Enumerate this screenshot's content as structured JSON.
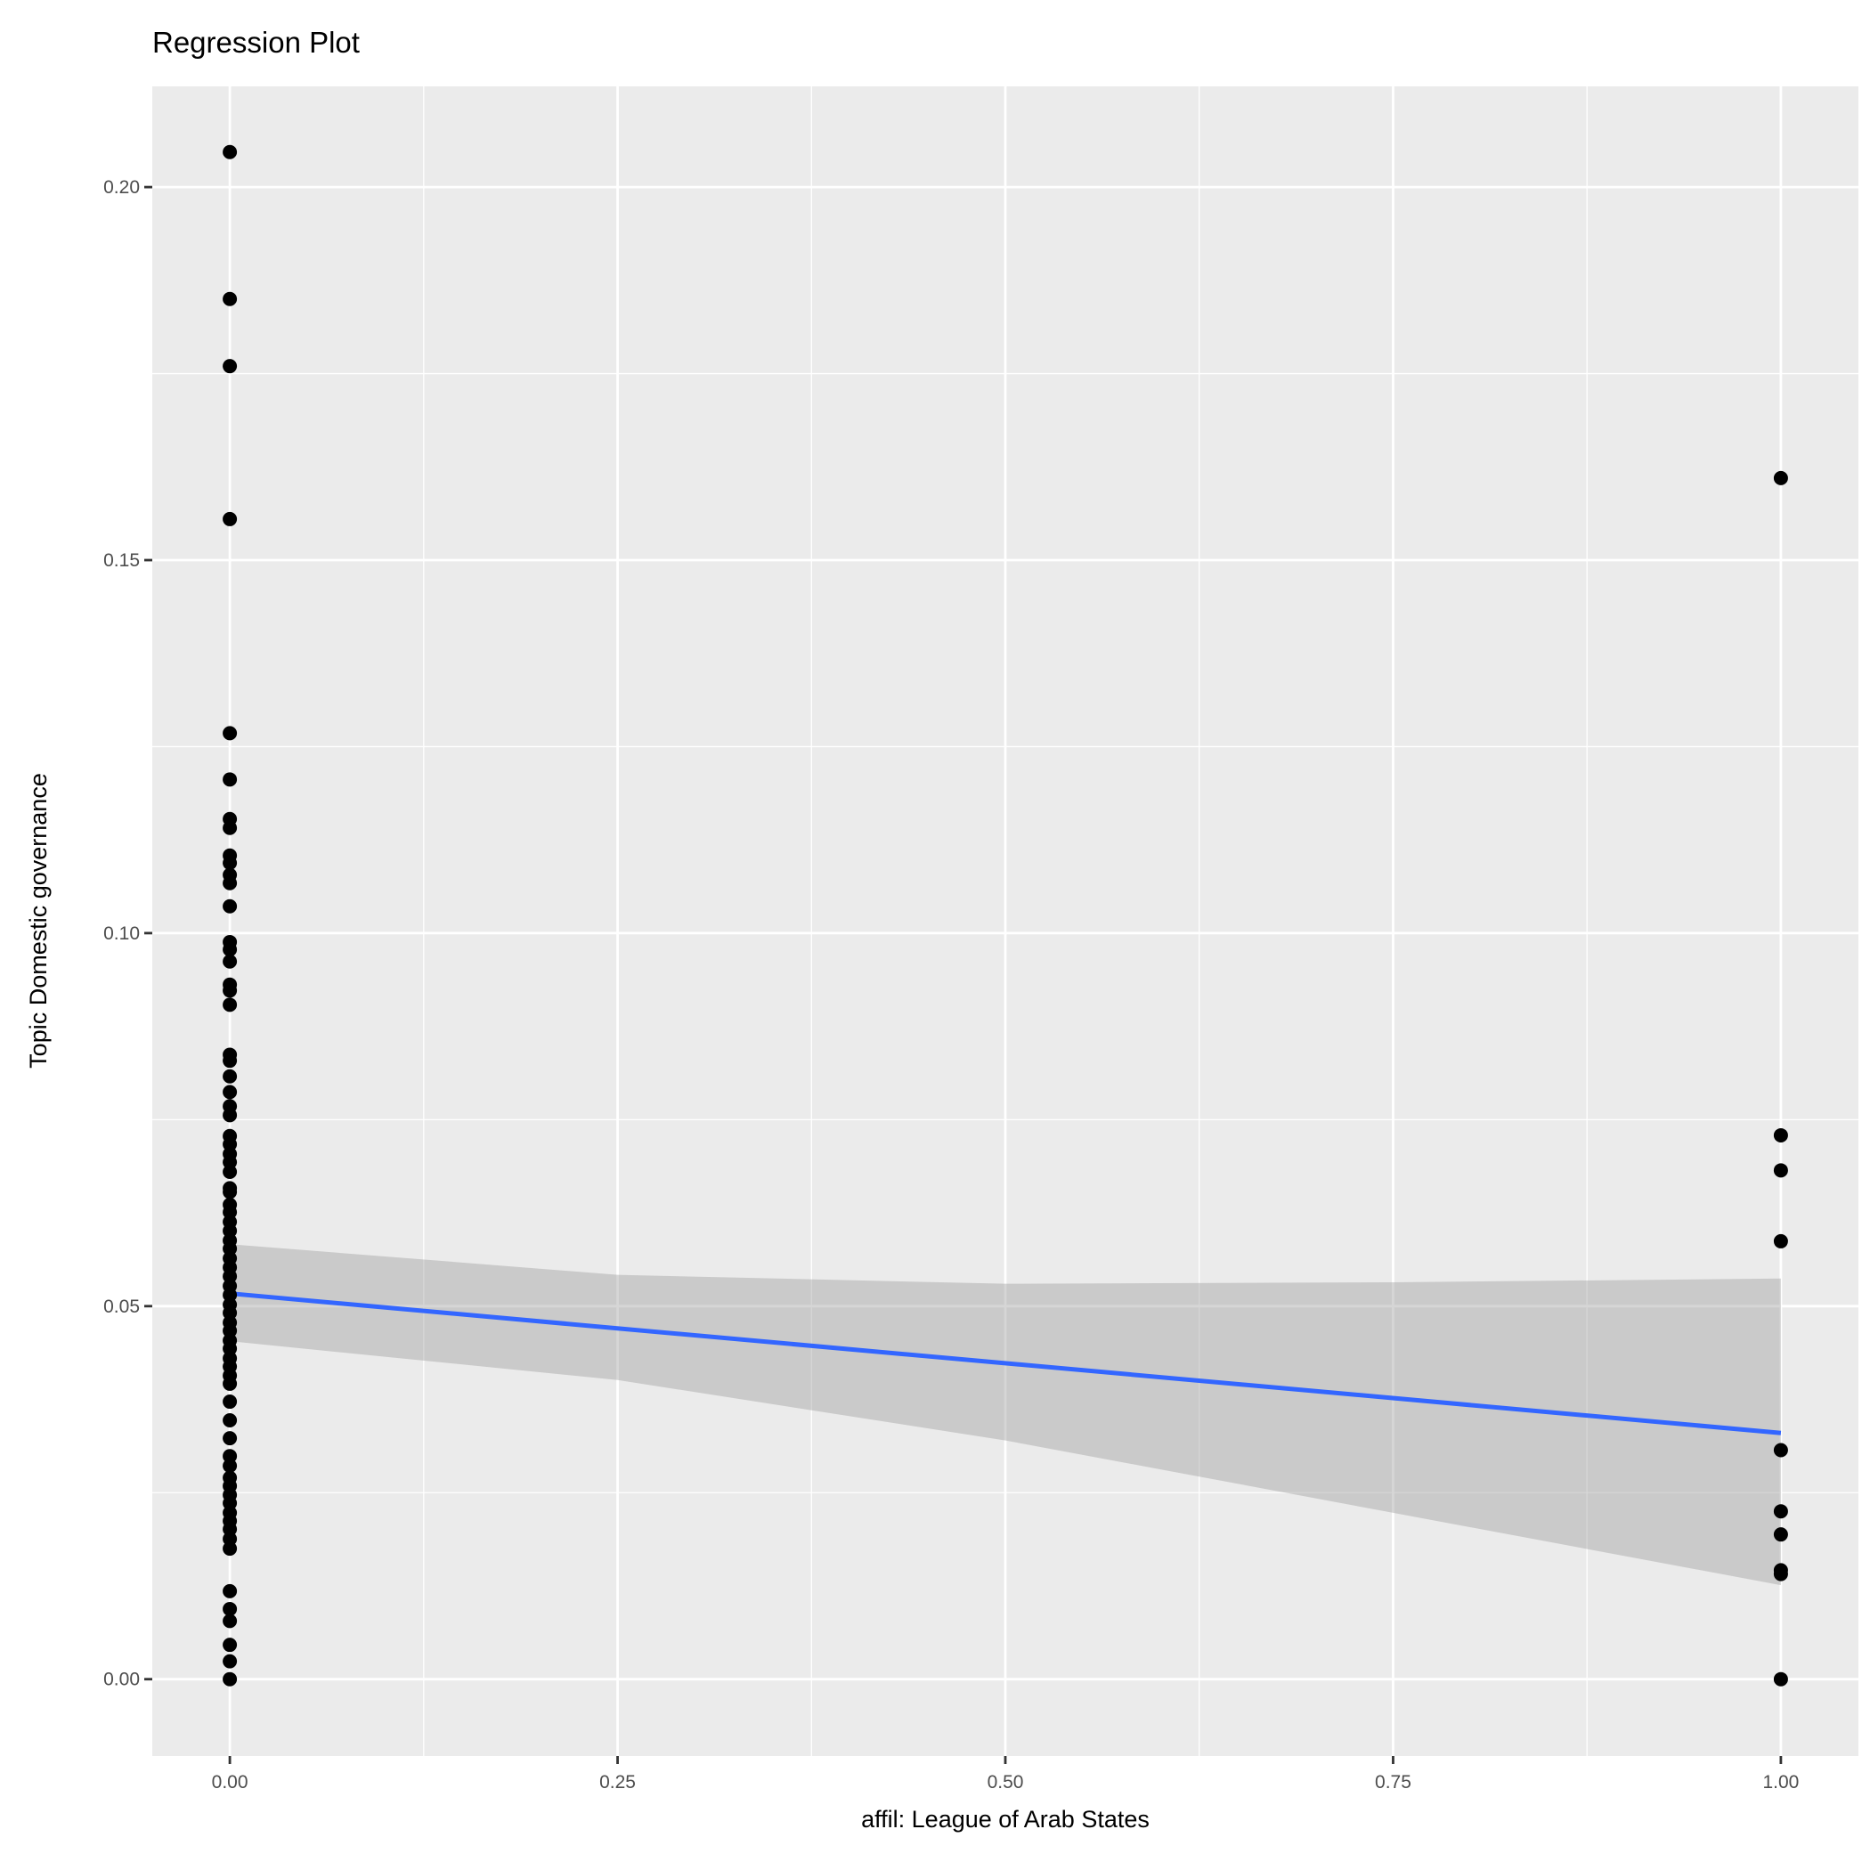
{
  "chart_data": {
    "type": "scatter",
    "title": "Regression Plot",
    "xlabel": "affil: League of Arab States",
    "ylabel": "Topic Domestic governance",
    "xlim": [
      -0.05,
      1.05
    ],
    "ylim": [
      -0.0103,
      0.2135
    ],
    "xticks": [
      0,
      0.25,
      0.5,
      0.75,
      1
    ],
    "xtick_labels": [
      "0.00",
      "0.25",
      "0.50",
      "0.75",
      "1.00"
    ],
    "yticks": [
      0,
      0.05,
      0.1,
      0.15,
      0.2
    ],
    "ytick_labels": [
      "0.00",
      "0.05",
      "0.10",
      "0.15",
      "0.20"
    ],
    "grid": true,
    "points_x0": [
      0.2047,
      0.185,
      0.176,
      0.1555,
      0.1268,
      0.1206,
      0.1153,
      0.1141,
      0.1104,
      0.1094,
      0.1078,
      0.1067,
      0.1036,
      0.0988,
      0.0978,
      0.0962,
      0.0931,
      0.0923,
      0.0904,
      0.0837,
      0.0829,
      0.0808,
      0.0787,
      0.0768,
      0.0756,
      0.0728,
      0.0717,
      0.0704,
      0.0693,
      0.068,
      0.0658,
      0.0653,
      0.0636,
      0.0626,
      0.0613,
      0.0601,
      0.0588,
      0.0577,
      0.0564,
      0.0552,
      0.054,
      0.0527,
      0.0515,
      0.0502,
      0.0491,
      0.0478,
      0.0467,
      0.0454,
      0.0443,
      0.043,
      0.0419,
      0.0407,
      0.0396,
      0.0372,
      0.0347,
      0.0323,
      0.0299,
      0.0286,
      0.027,
      0.0259,
      0.0247,
      0.0236,
      0.0223,
      0.0212,
      0.0201,
      0.0188,
      0.0175,
      0.0118,
      0.0094,
      0.0078,
      0.0046,
      0.0024,
      0.0
    ],
    "points_x1": [
      0.161,
      0.0729,
      0.0682,
      0.0587,
      0.0307,
      0.0225,
      0.0194,
      0.0146,
      0.0141,
      0.0
    ],
    "regression": {
      "x": [
        0,
        1
      ],
      "y": [
        0.0517,
        0.033
      ],
      "color": "#3366FF"
    },
    "ci_band": {
      "x": [
        0,
        0.25,
        0.5,
        0.75,
        1
      ],
      "upper": [
        0.0583,
        0.0542,
        0.053,
        0.0532,
        0.0537
      ],
      "lower": [
        0.0453,
        0.0401,
        0.032,
        0.0223,
        0.0126
      ]
    },
    "colors": {
      "panel": "#EBEBEB",
      "grid": "#FFFFFF",
      "point": "#000000",
      "band": "#999999"
    }
  }
}
